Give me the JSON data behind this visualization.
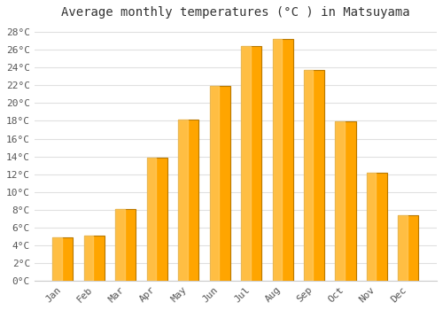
{
  "title": "Average monthly temperatures (°C ) in Matsuyama",
  "months": [
    "Jan",
    "Feb",
    "Mar",
    "Apr",
    "May",
    "Jun",
    "Jul",
    "Aug",
    "Sep",
    "Oct",
    "Nov",
    "Dec"
  ],
  "values": [
    4.9,
    5.1,
    8.1,
    13.9,
    18.1,
    21.9,
    26.4,
    27.2,
    23.7,
    17.9,
    12.2,
    7.4
  ],
  "bar_color_main": "#FFA500",
  "bar_color_light": "#FFD070",
  "bar_color_dark": "#E08000",
  "bar_edge_color": "#B87800",
  "ylim": [
    0,
    29
  ],
  "yticks": [
    0,
    2,
    4,
    6,
    8,
    10,
    12,
    14,
    16,
    18,
    20,
    22,
    24,
    26,
    28
  ],
  "ytick_labels": [
    "0°C",
    "2°C",
    "4°C",
    "6°C",
    "8°C",
    "10°C",
    "12°C",
    "14°C",
    "16°C",
    "18°C",
    "20°C",
    "22°C",
    "24°C",
    "26°C",
    "28°C"
  ],
  "background_color": "#ffffff",
  "grid_color": "#e0e0e0",
  "title_fontsize": 10,
  "tick_fontsize": 8,
  "font_family": "monospace",
  "bar_width": 0.65
}
